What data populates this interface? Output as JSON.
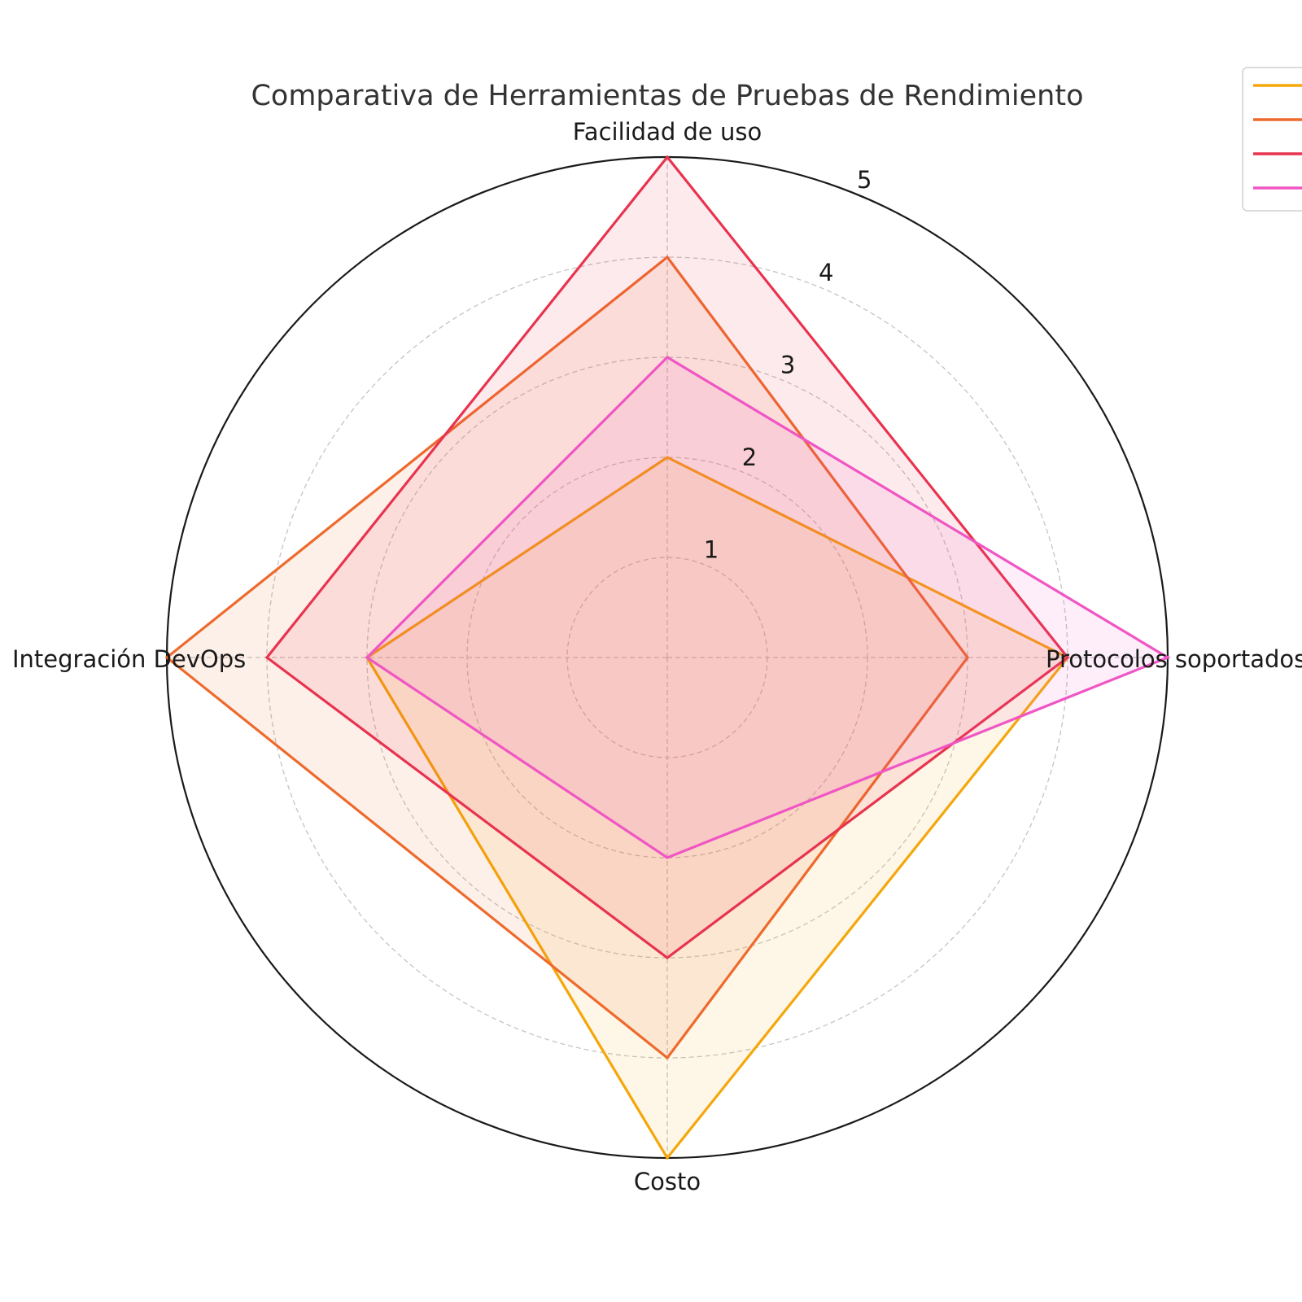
{
  "chart_data": {
    "type": "radar",
    "title": "Comparativa de Herramientas de Pruebas de Rendimiento",
    "axes": [
      "Facilidad de uso",
      "Protocolos soportados",
      "Costo",
      "Integración DevOps"
    ],
    "rlim": [
      0,
      5
    ],
    "r_ticks": [
      "1",
      "2",
      "3",
      "4",
      "5"
    ],
    "grid": true,
    "legend_position": "top-right",
    "series": [
      {
        "color": "#F5A60A",
        "values": [
          2,
          4,
          5,
          3
        ]
      },
      {
        "color": "#EE6A2C",
        "values": [
          4,
          3,
          4,
          5
        ]
      },
      {
        "color": "#E8334F",
        "values": [
          5,
          4,
          3,
          4
        ]
      },
      {
        "color": "#F055C4",
        "values": [
          3,
          5,
          2,
          3
        ]
      }
    ]
  }
}
